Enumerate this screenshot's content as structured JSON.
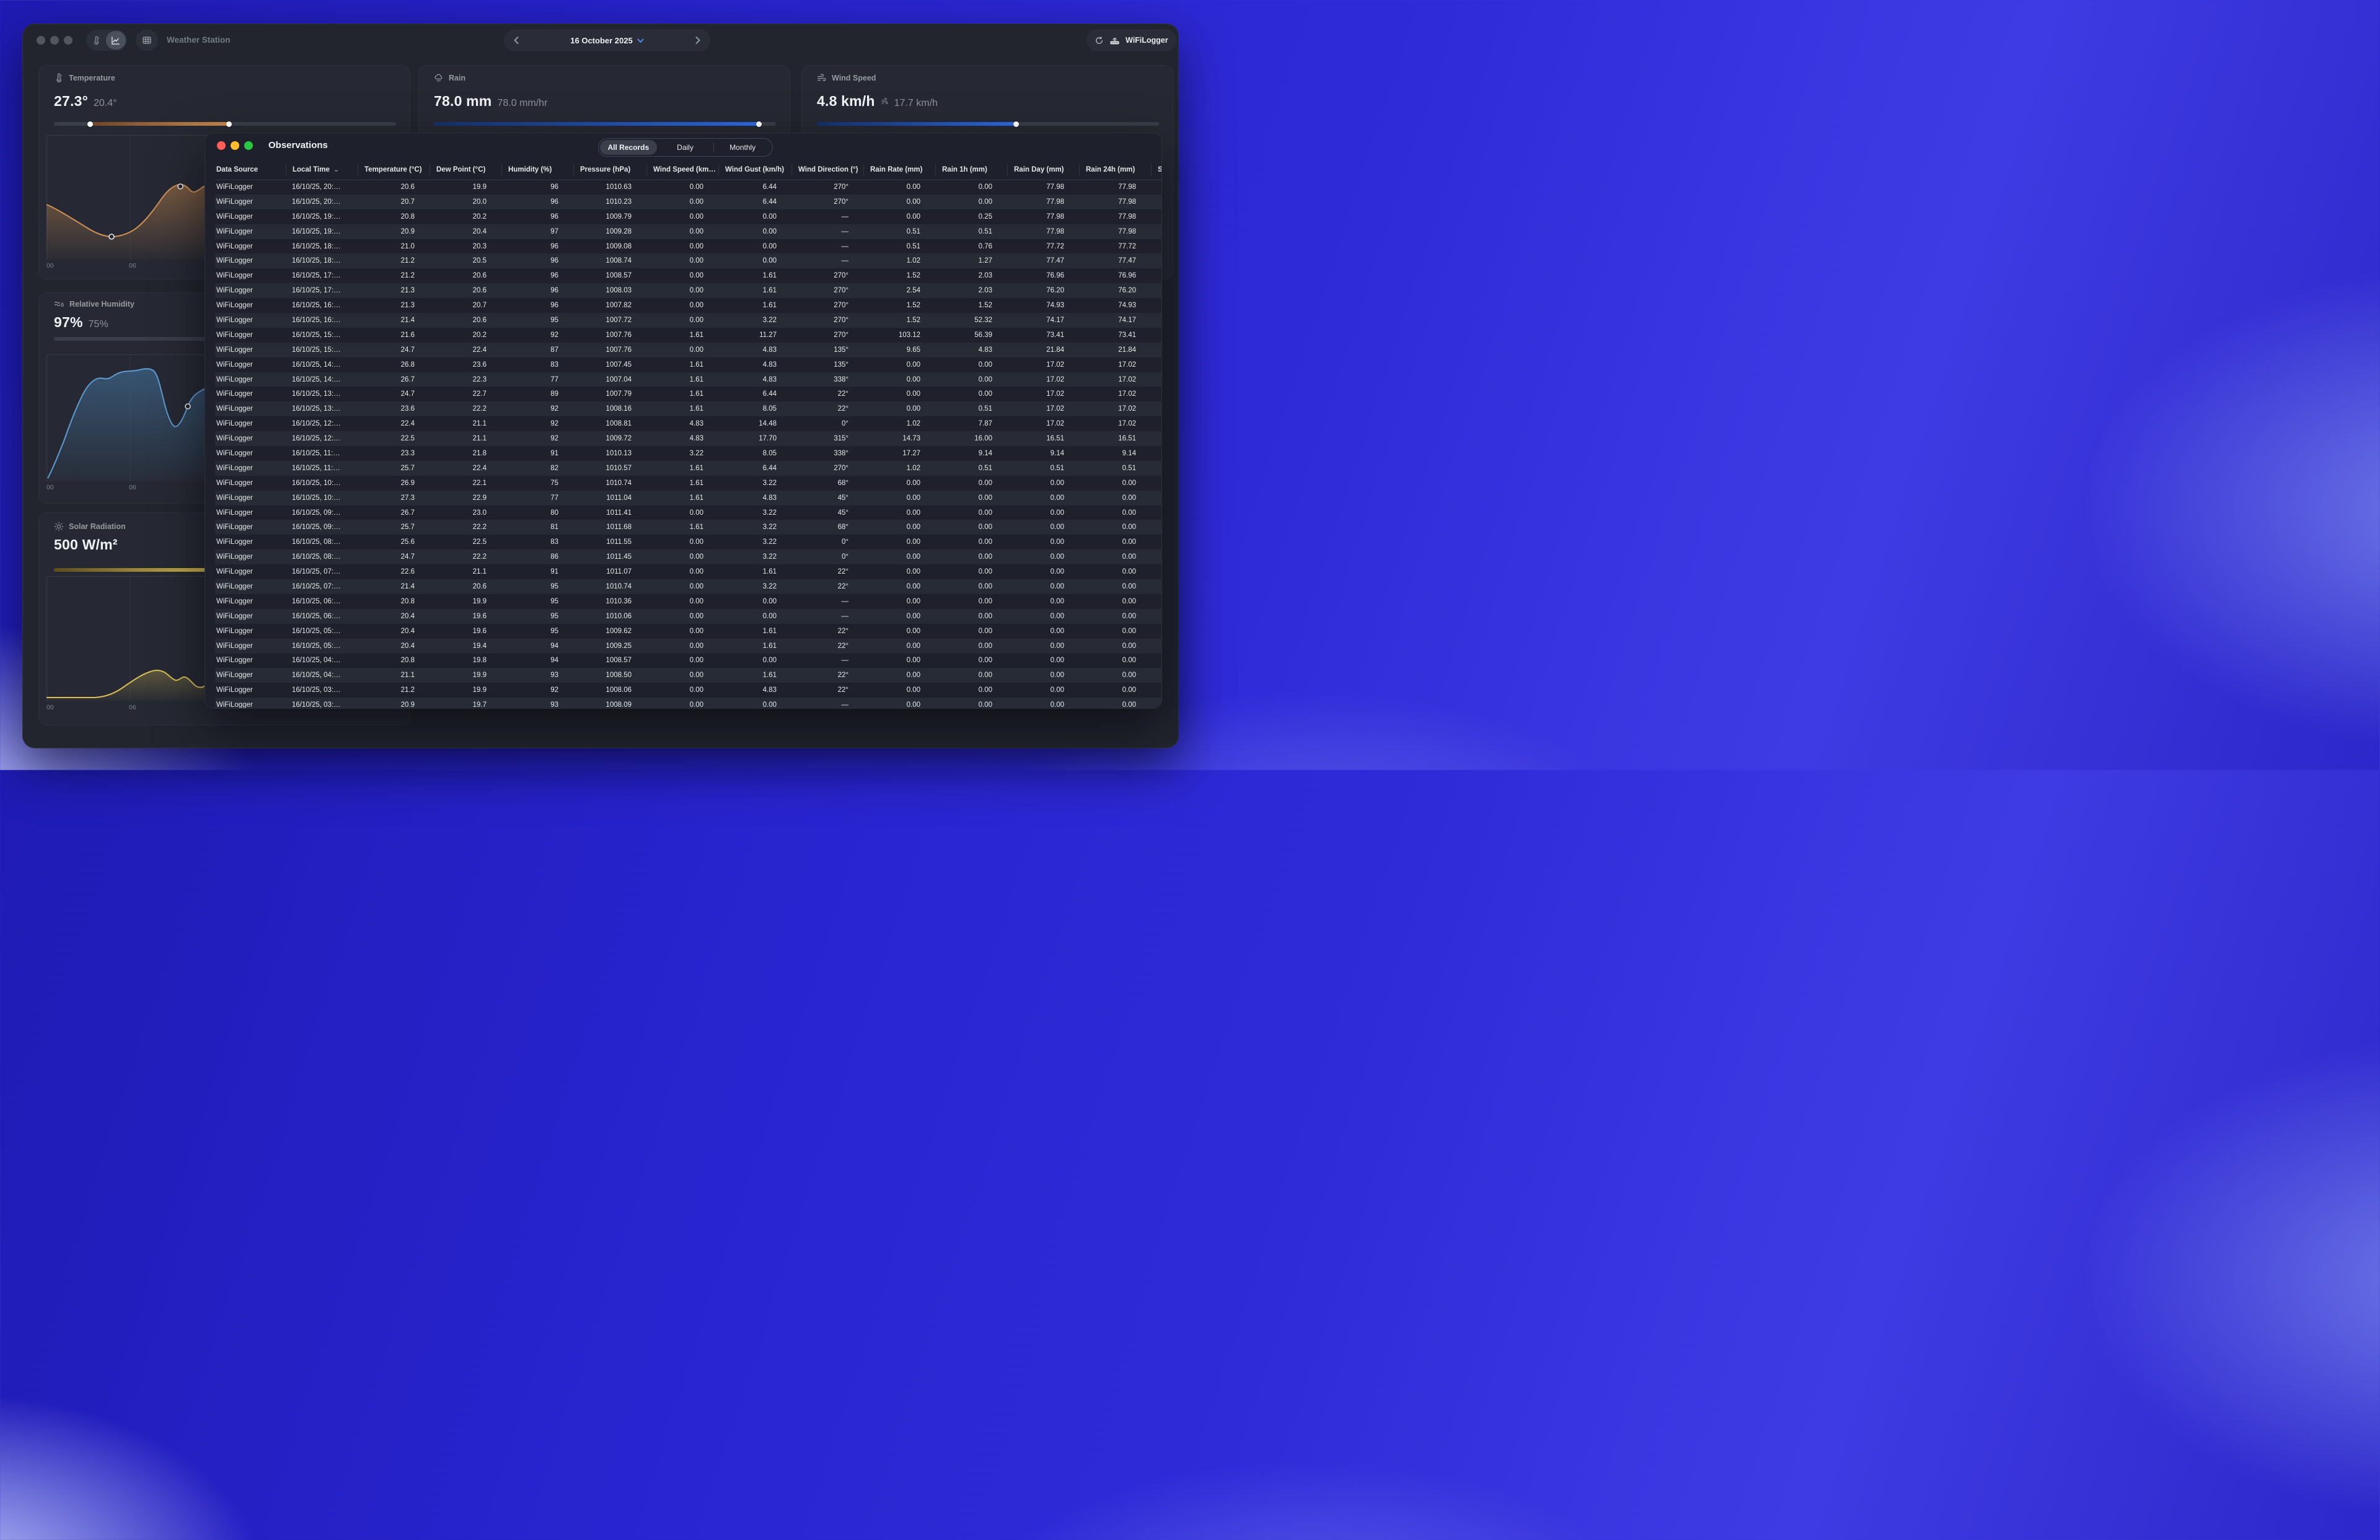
{
  "main": {
    "title": "Weather Station",
    "toolbar": {
      "date_label": "16 October 2025",
      "device_label": "WiFiLogger"
    },
    "cards": {
      "temperature": {
        "label": "Temperature",
        "value": "27.3°",
        "secondary": "20.4°",
        "ticks": [
          "00",
          "06"
        ]
      },
      "rain": {
        "label": "Rain",
        "value": "78.0 mm",
        "secondary": "78.0 mm/hr"
      },
      "wind": {
        "label": "Wind Speed",
        "value": "4.8 km/h",
        "secondary": "17.7 km/h"
      },
      "humidity": {
        "label": "Relative Humidity",
        "value": "97%",
        "secondary": "75%",
        "ticks": [
          "00",
          "06"
        ]
      },
      "solar": {
        "label": "Solar Radiation",
        "value": "500 W/m²",
        "ticks": [
          "00",
          "06"
        ]
      }
    },
    "accent_colors": {
      "temperature": "#c9894d",
      "rain_wind": "#2e6ce8",
      "humidity": "#5d9bd3",
      "solar": "#d4ba50"
    }
  },
  "observations": {
    "title": "Observations",
    "tabs": [
      "All Records",
      "Daily",
      "Monthly"
    ],
    "active_tab": "All Records",
    "sort_column": "Local Time",
    "columns": [
      "Data Source",
      "Local Time",
      "Temperature (°C)",
      "Dew Point (°C)",
      "Humidity (%)",
      "Pressure (hPa)",
      "Wind Speed (km…",
      "Wind Gust (km/h)",
      "Wind Direction (°)",
      "Rain Rate (mm)",
      "Rain 1h (mm)",
      "Rain Day (mm)",
      "Rain 24h (mm)",
      "S"
    ],
    "rows": [
      [
        "WiFiLogger",
        "16/10/25, 20:…",
        "20.6",
        "19.9",
        "96",
        "1010.63",
        "0.00",
        "6.44",
        "270°",
        "0.00",
        "0.00",
        "77.98",
        "77.98"
      ],
      [
        "WiFiLogger",
        "16/10/25, 20:…",
        "20.7",
        "20.0",
        "96",
        "1010.23",
        "0.00",
        "6.44",
        "270°",
        "0.00",
        "0.00",
        "77.98",
        "77.98"
      ],
      [
        "WiFiLogger",
        "16/10/25, 19:…",
        "20.8",
        "20.2",
        "96",
        "1009.79",
        "0.00",
        "0.00",
        "—",
        "0.00",
        "0.25",
        "77.98",
        "77.98"
      ],
      [
        "WiFiLogger",
        "16/10/25, 19:…",
        "20.9",
        "20.4",
        "97",
        "1009.28",
        "0.00",
        "0.00",
        "—",
        "0.51",
        "0.51",
        "77.98",
        "77.98"
      ],
      [
        "WiFiLogger",
        "16/10/25, 18:…",
        "21.0",
        "20.3",
        "96",
        "1009.08",
        "0.00",
        "0.00",
        "—",
        "0.51",
        "0.76",
        "77.72",
        "77.72"
      ],
      [
        "WiFiLogger",
        "16/10/25, 18:…",
        "21.2",
        "20.5",
        "96",
        "1008.74",
        "0.00",
        "0.00",
        "—",
        "1.02",
        "1.27",
        "77.47",
        "77.47"
      ],
      [
        "WiFiLogger",
        "16/10/25, 17:…",
        "21.2",
        "20.6",
        "96",
        "1008.57",
        "0.00",
        "1.61",
        "270°",
        "1.52",
        "2.03",
        "76.96",
        "76.96"
      ],
      [
        "WiFiLogger",
        "16/10/25, 17:…",
        "21.3",
        "20.6",
        "96",
        "1008.03",
        "0.00",
        "1.61",
        "270°",
        "2.54",
        "2.03",
        "76.20",
        "76.20"
      ],
      [
        "WiFiLogger",
        "16/10/25, 16:…",
        "21.3",
        "20.7",
        "96",
        "1007.82",
        "0.00",
        "1.61",
        "270°",
        "1.52",
        "1.52",
        "74.93",
        "74.93"
      ],
      [
        "WiFiLogger",
        "16/10/25, 16:…",
        "21.4",
        "20.6",
        "95",
        "1007.72",
        "0.00",
        "3.22",
        "270°",
        "1.52",
        "52.32",
        "74.17",
        "74.17"
      ],
      [
        "WiFiLogger",
        "16/10/25, 15:…",
        "21.6",
        "20.2",
        "92",
        "1007.76",
        "1.61",
        "11.27",
        "270°",
        "103.12",
        "56.39",
        "73.41",
        "73.41"
      ],
      [
        "WiFiLogger",
        "16/10/25, 15:…",
        "24.7",
        "22.4",
        "87",
        "1007.76",
        "0.00",
        "4.83",
        "135°",
        "9.65",
        "4.83",
        "21.84",
        "21.84"
      ],
      [
        "WiFiLogger",
        "16/10/25, 14:…",
        "26.8",
        "23.6",
        "83",
        "1007.45",
        "1.61",
        "4.83",
        "135°",
        "0.00",
        "0.00",
        "17.02",
        "17.02"
      ],
      [
        "WiFiLogger",
        "16/10/25, 14:…",
        "26.7",
        "22.3",
        "77",
        "1007.04",
        "1.61",
        "4.83",
        "338°",
        "0.00",
        "0.00",
        "17.02",
        "17.02"
      ],
      [
        "WiFiLogger",
        "16/10/25, 13:…",
        "24.7",
        "22.7",
        "89",
        "1007.79",
        "1.61",
        "6.44",
        "22°",
        "0.00",
        "0.00",
        "17.02",
        "17.02"
      ],
      [
        "WiFiLogger",
        "16/10/25, 13:…",
        "23.6",
        "22.2",
        "92",
        "1008.16",
        "1.61",
        "8.05",
        "22°",
        "0.00",
        "0.51",
        "17.02",
        "17.02"
      ],
      [
        "WiFiLogger",
        "16/10/25, 12:…",
        "22.4",
        "21.1",
        "92",
        "1008.81",
        "4.83",
        "14.48",
        "0°",
        "1.02",
        "7.87",
        "17.02",
        "17.02"
      ],
      [
        "WiFiLogger",
        "16/10/25, 12:…",
        "22.5",
        "21.1",
        "92",
        "1009.72",
        "4.83",
        "17.70",
        "315°",
        "14.73",
        "16.00",
        "16.51",
        "16.51"
      ],
      [
        "WiFiLogger",
        "16/10/25, 11:…",
        "23.3",
        "21.8",
        "91",
        "1010.13",
        "3.22",
        "8.05",
        "338°",
        "17.27",
        "9.14",
        "9.14",
        "9.14"
      ],
      [
        "WiFiLogger",
        "16/10/25, 11:…",
        "25.7",
        "22.4",
        "82",
        "1010.57",
        "1.61",
        "6.44",
        "270°",
        "1.02",
        "0.51",
        "0.51",
        "0.51"
      ],
      [
        "WiFiLogger",
        "16/10/25, 10:…",
        "26.9",
        "22.1",
        "75",
        "1010.74",
        "1.61",
        "3.22",
        "68°",
        "0.00",
        "0.00",
        "0.00",
        "0.00"
      ],
      [
        "WiFiLogger",
        "16/10/25, 10:…",
        "27.3",
        "22.9",
        "77",
        "1011.04",
        "1.61",
        "4.83",
        "45°",
        "0.00",
        "0.00",
        "0.00",
        "0.00"
      ],
      [
        "WiFiLogger",
        "16/10/25, 09:…",
        "26.7",
        "23.0",
        "80",
        "1011.41",
        "0.00",
        "3.22",
        "45°",
        "0.00",
        "0.00",
        "0.00",
        "0.00"
      ],
      [
        "WiFiLogger",
        "16/10/25, 09:…",
        "25.7",
        "22.2",
        "81",
        "1011.68",
        "1.61",
        "3.22",
        "68°",
        "0.00",
        "0.00",
        "0.00",
        "0.00"
      ],
      [
        "WiFiLogger",
        "16/10/25, 08:…",
        "25.6",
        "22.5",
        "83",
        "1011.55",
        "0.00",
        "3.22",
        "0°",
        "0.00",
        "0.00",
        "0.00",
        "0.00"
      ],
      [
        "WiFiLogger",
        "16/10/25, 08:…",
        "24.7",
        "22.2",
        "86",
        "1011.45",
        "0.00",
        "3.22",
        "0°",
        "0.00",
        "0.00",
        "0.00",
        "0.00"
      ],
      [
        "WiFiLogger",
        "16/10/25, 07:…",
        "22.6",
        "21.1",
        "91",
        "1011.07",
        "0.00",
        "1.61",
        "22°",
        "0.00",
        "0.00",
        "0.00",
        "0.00"
      ],
      [
        "WiFiLogger",
        "16/10/25, 07:…",
        "21.4",
        "20.6",
        "95",
        "1010.74",
        "0.00",
        "3.22",
        "22°",
        "0.00",
        "0.00",
        "0.00",
        "0.00"
      ],
      [
        "WiFiLogger",
        "16/10/25, 06:…",
        "20.8",
        "19.9",
        "95",
        "1010.36",
        "0.00",
        "0.00",
        "—",
        "0.00",
        "0.00",
        "0.00",
        "0.00"
      ],
      [
        "WiFiLogger",
        "16/10/25, 06:…",
        "20.4",
        "19.6",
        "95",
        "1010.06",
        "0.00",
        "0.00",
        "—",
        "0.00",
        "0.00",
        "0.00",
        "0.00"
      ],
      [
        "WiFiLogger",
        "16/10/25, 05:…",
        "20.4",
        "19.6",
        "95",
        "1009.62",
        "0.00",
        "1.61",
        "22°",
        "0.00",
        "0.00",
        "0.00",
        "0.00"
      ],
      [
        "WiFiLogger",
        "16/10/25, 05:…",
        "20.4",
        "19.4",
        "94",
        "1009.25",
        "0.00",
        "1.61",
        "22°",
        "0.00",
        "0.00",
        "0.00",
        "0.00"
      ],
      [
        "WiFiLogger",
        "16/10/25, 04:…",
        "20.8",
        "19.8",
        "94",
        "1008.57",
        "0.00",
        "0.00",
        "—",
        "0.00",
        "0.00",
        "0.00",
        "0.00"
      ],
      [
        "WiFiLogger",
        "16/10/25, 04:…",
        "21.1",
        "19.9",
        "93",
        "1008.50",
        "0.00",
        "1.61",
        "22°",
        "0.00",
        "0.00",
        "0.00",
        "0.00"
      ],
      [
        "WiFiLogger",
        "16/10/25, 03:…",
        "21.2",
        "19.9",
        "92",
        "1008.06",
        "0.00",
        "4.83",
        "22°",
        "0.00",
        "0.00",
        "0.00",
        "0.00"
      ],
      [
        "WiFiLogger",
        "16/10/25, 03:…",
        "20.9",
        "19.7",
        "93",
        "1008.09",
        "0.00",
        "0.00",
        "—",
        "0.00",
        "0.00",
        "0.00",
        "0.00"
      ]
    ]
  }
}
